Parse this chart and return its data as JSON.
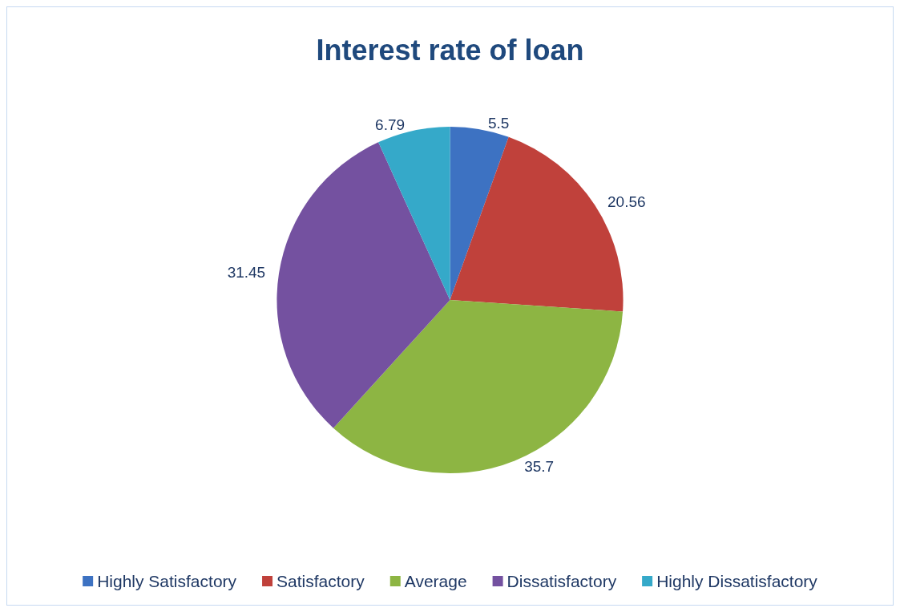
{
  "chart_data": {
    "type": "pie",
    "title": "Interest rate of loan",
    "categories": [
      "Highly Satisfactory",
      "Satisfactory",
      "Average",
      "Dissatisfactory",
      "Highly Dissatisfactory"
    ],
    "values": [
      5.5,
      20.56,
      35.7,
      31.45,
      6.79
    ],
    "colors": [
      "#3d72c2",
      "#c0413b",
      "#8db543",
      "#7451a0",
      "#35a9c9"
    ],
    "data_labels": true,
    "legend": "bottom"
  }
}
